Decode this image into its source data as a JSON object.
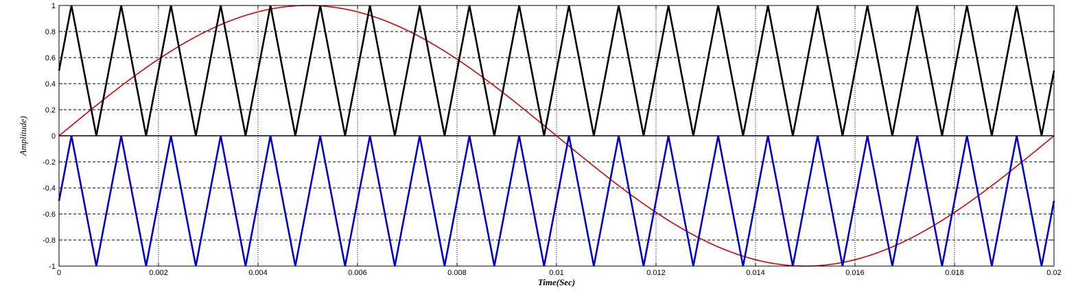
{
  "chart_data": {
    "type": "line",
    "title": "",
    "xlabel": "Time(Sec)",
    "ylabel": "Amplitude)",
    "xlim": [
      0,
      0.02
    ],
    "ylim": [
      -1,
      1
    ],
    "xticks": [
      0,
      0.002,
      0.004,
      0.006,
      0.008,
      0.01,
      0.012,
      0.014,
      0.016,
      0.018,
      0.02
    ],
    "xtick_labels": [
      "0",
      "0.002",
      "0.004",
      "0.006",
      "0.008",
      "0.01",
      "0.012",
      "0.014",
      "0.016",
      "0.018",
      "0.02"
    ],
    "yticks": [
      -1,
      -0.8,
      -0.6,
      -0.4,
      -0.2,
      0,
      0.2,
      0.4,
      0.6,
      0.8,
      1
    ],
    "ytick_labels": [
      "-1",
      "-0.8",
      "-0.6",
      "-0.4",
      "-0.2",
      "0",
      "0.2",
      "0.4",
      "0.6",
      "0.8",
      "1"
    ],
    "grid": true,
    "legend": "none",
    "series": [
      {
        "kind": "sine",
        "color": "#d40000",
        "amplitude": 1,
        "frequency_hz": 50,
        "phase_deg": 0
      },
      {
        "kind": "triangle",
        "color": "#000000",
        "min": 0,
        "max": 1,
        "frequency_hz": 1000,
        "x": [
          0,
          0.00025,
          0.00075,
          0.00125,
          0.00175,
          0.00225,
          0.00275,
          0.00325,
          0.00375,
          0.00425,
          0.00475,
          0.00525,
          0.00575,
          0.00625,
          0.00675,
          0.00725,
          0.00775,
          0.00825,
          0.00875,
          0.00925,
          0.00975,
          0.01025,
          0.01075,
          0.01125,
          0.01175,
          0.01225,
          0.01275,
          0.01325,
          0.01375,
          0.01425,
          0.01475,
          0.01525,
          0.01575,
          0.01625,
          0.01675,
          0.01725,
          0.01775,
          0.01825,
          0.01875,
          0.01925,
          0.01975,
          0.02
        ],
        "y": [
          0.5,
          1,
          0,
          1,
          0,
          1,
          0,
          1,
          0,
          1,
          0,
          1,
          0,
          1,
          0,
          1,
          0,
          1,
          0,
          1,
          0,
          1,
          0,
          1,
          0,
          1,
          0,
          1,
          0,
          1,
          0,
          1,
          0,
          1,
          0,
          1,
          0,
          1,
          0,
          1,
          0,
          0.5
        ]
      },
      {
        "kind": "triangle",
        "color": "#0000cc",
        "min": -1,
        "max": 0,
        "frequency_hz": 1000,
        "x": [
          0,
          0.00025,
          0.00075,
          0.00125,
          0.00175,
          0.00225,
          0.00275,
          0.00325,
          0.00375,
          0.00425,
          0.00475,
          0.00525,
          0.00575,
          0.00625,
          0.00675,
          0.00725,
          0.00775,
          0.00825,
          0.00875,
          0.00925,
          0.00975,
          0.01025,
          0.01075,
          0.01125,
          0.01175,
          0.01225,
          0.01275,
          0.01325,
          0.01375,
          0.01425,
          0.01475,
          0.01525,
          0.01575,
          0.01625,
          0.01675,
          0.01725,
          0.01775,
          0.01825,
          0.01875,
          0.01925,
          0.01975,
          0.02
        ],
        "y": [
          -0.5,
          0,
          -1,
          0,
          -1,
          0,
          -1,
          0,
          -1,
          0,
          -1,
          0,
          -1,
          0,
          -1,
          0,
          -1,
          0,
          -1,
          0,
          -1,
          0,
          -1,
          0,
          -1,
          0,
          -1,
          0,
          -1,
          0,
          -1,
          0,
          -1,
          0,
          -1,
          0,
          -1,
          0,
          -1,
          0,
          -1,
          -0.5
        ]
      }
    ]
  }
}
